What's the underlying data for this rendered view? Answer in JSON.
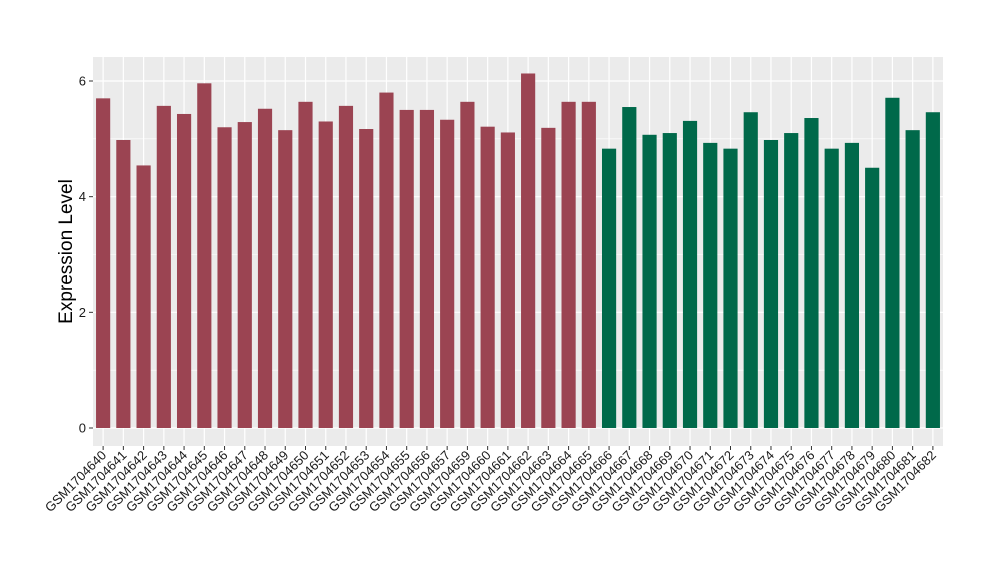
{
  "chart_data": {
    "type": "bar",
    "title": "",
    "xlabel": "",
    "ylabel": "Expression Level",
    "ylim": [
      0,
      6.3
    ],
    "yticks": [
      0,
      2,
      4,
      6
    ],
    "grid": true,
    "panel_background": "#ebebeb",
    "grid_color": "#ffffff",
    "categories": [
      "GSM1704640",
      "GSM1704641",
      "GSM1704642",
      "GSM1704643",
      "GSM1704644",
      "GSM1704645",
      "GSM1704646",
      "GSM1704647",
      "GSM1704648",
      "GSM1704649",
      "GSM1704650",
      "GSM1704651",
      "GSM1704652",
      "GSM1704653",
      "GSM1704654",
      "GSM1704655",
      "GSM1704656",
      "GSM1704657",
      "GSM1704659",
      "GSM1704660",
      "GSM1704661",
      "GSM1704662",
      "GSM1704663",
      "GSM1704664",
      "GSM1704665",
      "GSM1704666",
      "GSM1704667",
      "GSM1704668",
      "GSM1704669",
      "GSM1704670",
      "GSM1704671",
      "GSM1704672",
      "GSM1704673",
      "GSM1704674",
      "GSM1704675",
      "GSM1704676",
      "GSM1704677",
      "GSM1704678",
      "GSM1704679",
      "GSM1704680",
      "GSM1704681",
      "GSM1704682"
    ],
    "values": [
      5.7,
      4.98,
      4.54,
      5.57,
      5.43,
      5.96,
      5.2,
      5.29,
      5.52,
      5.15,
      5.64,
      5.3,
      5.57,
      5.17,
      5.8,
      5.5,
      5.5,
      5.33,
      5.64,
      5.21,
      5.11,
      6.13,
      5.19,
      5.64,
      5.64,
      4.83,
      5.55,
      5.07,
      5.1,
      5.31,
      4.93,
      4.83,
      5.46,
      4.98,
      5.1,
      5.36,
      4.83,
      4.93,
      4.5,
      5.71,
      5.15,
      5.46
    ],
    "group_sizes": [
      25,
      17
    ],
    "group_colors": [
      "#9b4452",
      "#00694a"
    ]
  }
}
